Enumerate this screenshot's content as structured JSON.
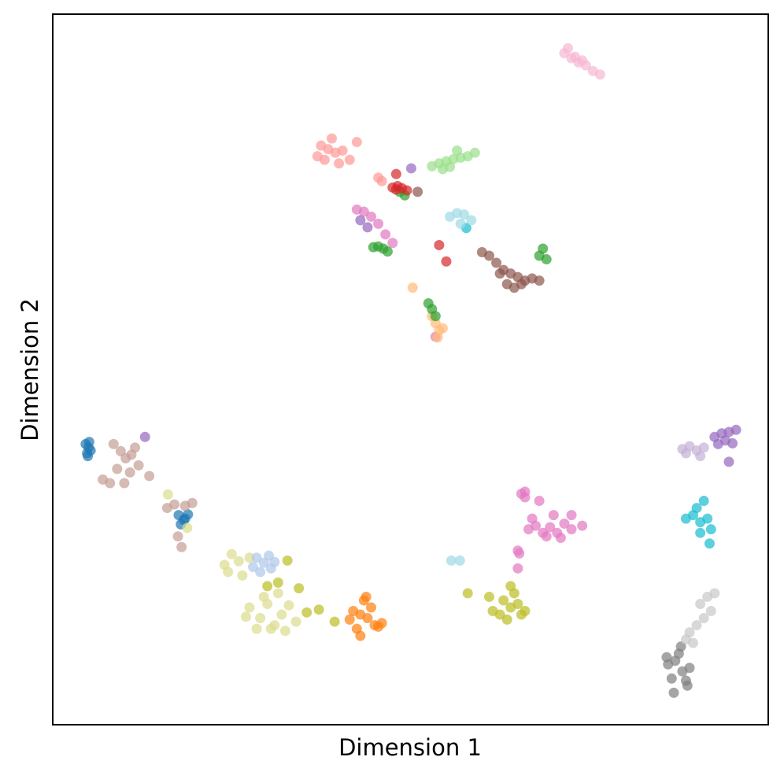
{
  "chart_data": {
    "type": "scatter",
    "xlabel": "Dimension 1",
    "ylabel": "Dimension 2",
    "xlim": [
      0,
      100
    ],
    "ylim": [
      0,
      100
    ],
    "alpha": 0.7,
    "series": [
      {
        "color": "#1f77b4",
        "x": [
          4.6,
          5.0,
          5.3,
          4.8,
          5.1,
          4.9,
          17.6,
          18.3,
          18.9,
          17.9,
          18.5
        ],
        "y": [
          39.5,
          39.0,
          38.6,
          38.2,
          39.8,
          37.8,
          29.5,
          28.8,
          29.6,
          28.2,
          29.0
        ]
      },
      {
        "color": "#c49c94",
        "x": [
          8.5,
          9.5,
          10.2,
          11.0,
          12.0,
          9.0,
          10.8,
          11.5,
          7.0,
          8.0,
          13.5,
          10.0,
          16.0,
          17.0,
          18.5,
          19.5,
          17.5,
          18.0
        ],
        "y": [
          39.5,
          38.5,
          37.5,
          38.0,
          36.5,
          36.0,
          35.5,
          39.0,
          34.5,
          34.0,
          35.0,
          34.0,
          30.5,
          31.0,
          30.8,
          31.2,
          26.5,
          25.0
        ]
      },
      {
        "color": "#dbdb8d",
        "x": [
          27.5,
          29,
          30,
          31,
          32,
          33,
          34,
          28.5,
          30.5,
          32.5,
          27,
          29.5,
          31.5,
          24,
          25,
          26,
          24.5,
          26.5,
          27.5,
          16.1,
          18.8
        ],
        "y": [
          16.5,
          15,
          17,
          14,
          15.5,
          16.8,
          14.5,
          13.5,
          13.5,
          13.2,
          15.2,
          18,
          18.5,
          22.5,
          24,
          23,
          21.5,
          21,
          23.5,
          32.4,
          27.7
        ]
      },
      {
        "color": "#aec7e8",
        "x": [
          28.5,
          29.5,
          30.5,
          29.0,
          30.2,
          28.0,
          31.0
        ],
        "y": [
          23.5,
          22.8,
          22.0,
          21.5,
          23.8,
          22.2,
          22.9
        ]
      },
      {
        "color": "#bcbd22",
        "x": [
          63,
          64,
          65,
          66,
          62.5,
          64.5,
          65.5,
          63.5,
          61.5,
          64,
          58,
          61,
          30,
          32.8,
          34.4,
          37.2,
          39.4,
          31.5,
          35.5
        ],
        "y": [
          17.5,
          16.5,
          17,
          16,
          15.5,
          18.5,
          15.5,
          14.8,
          16,
          19.5,
          18.5,
          18,
          19.5,
          23.1,
          19.2,
          16.2,
          14.5,
          20,
          15.8
        ]
      },
      {
        "color": "#ff7f0e",
        "x": [
          42,
          43,
          44,
          45,
          43.5,
          42.5,
          44.5,
          41.5,
          45.5,
          43,
          46,
          43.8
        ],
        "y": [
          16,
          15.5,
          15,
          14,
          17.5,
          13.5,
          16.5,
          14.8,
          13.8,
          12.5,
          14.3,
          18
        ]
      },
      {
        "color": "#e377c2",
        "x": [
          66.5,
          67.5,
          68.5,
          69.5,
          70.5,
          71.5,
          72.5,
          69,
          71,
          67,
          68,
          70,
          65.5,
          66,
          65,
          74,
          72.5,
          66,
          42.5,
          43.5,
          44.5,
          45.5,
          46.5,
          47.5,
          53.5,
          65.2,
          65
        ],
        "y": [
          27.5,
          28,
          27,
          27.8,
          27,
          28.3,
          27.5,
          26.5,
          26.3,
          29,
          31.5,
          29.5,
          32.5,
          32.8,
          24.5,
          28,
          29.5,
          32,
          72.5,
          72.2,
          71.5,
          70.5,
          69,
          67.8,
          54.6,
          24.1,
          22
        ]
      },
      {
        "color": "#f7b6d2",
        "x": [
          71.5,
          72.5,
          73.5,
          74.5,
          75.5,
          73,
          74,
          76.5,
          72
        ],
        "y": [
          94.5,
          93.8,
          93.2,
          92.8,
          92,
          94,
          93.5,
          91.5,
          95.2
        ]
      },
      {
        "color": "#ff9896",
        "x": [
          37.5,
          38.5,
          39.5,
          40.5,
          38,
          39,
          40,
          37,
          41.5,
          42.5,
          45.5,
          46
        ],
        "y": [
          81.5,
          81,
          80.5,
          80.8,
          79.5,
          82.5,
          79,
          80,
          79.5,
          82,
          77,
          76.5
        ]
      },
      {
        "color": "#98df8a",
        "x": [
          53,
          54,
          55,
          56,
          57,
          58,
          59,
          56.5,
          55.5,
          54.5
        ],
        "y": [
          78.6,
          79,
          79.3,
          79.6,
          79.8,
          80,
          80.5,
          80.8,
          78.5,
          78.2
        ]
      },
      {
        "color": "#8c564b",
        "x": [
          60,
          61,
          62,
          63,
          64,
          65,
          66,
          67,
          68,
          63.5,
          64.5,
          65.5,
          62.5,
          51
        ],
        "y": [
          66.5,
          66,
          65,
          64,
          63.5,
          63,
          62.5,
          62.8,
          62.5,
          62,
          61.5,
          62,
          63.5,
          75
        ]
      },
      {
        "color": "#ffbb78",
        "x": [
          53,
          53.5,
          54,
          54.5,
          53.8,
          50.3
        ],
        "y": [
          57.5,
          56.5,
          55.5,
          55.8,
          54.5,
          61.5
        ]
      },
      {
        "color": "#2ca02c",
        "x": [
          44.8,
          45.5,
          46.2,
          46.8,
          48.5,
          52.5,
          53,
          53.5,
          68.5,
          68,
          69,
          49.2
        ],
        "y": [
          67.2,
          67.3,
          67,
          66.6,
          75,
          59.3,
          58.5,
          57.5,
          67,
          66,
          65.5,
          74.5
        ]
      },
      {
        "color": "#d62728",
        "x": [
          47.5,
          48.2,
          48.8,
          49.5,
          48,
          54,
          55,
          48
        ],
        "y": [
          75.6,
          75.8,
          75.5,
          75.2,
          75.3,
          67.5,
          65.2,
          77.5
        ]
      },
      {
        "color": "#9467bd",
        "x": [
          92.5,
          93.5,
          94.5,
          95.5,
          93,
          94,
          95,
          94.5,
          43,
          44,
          50.1,
          12.9
        ],
        "y": [
          40.5,
          41,
          41.2,
          41.5,
          39.5,
          40,
          39.6,
          37,
          71,
          70,
          78.3,
          40.5
        ]
      },
      {
        "color": "#c5b0d5",
        "x": [
          88,
          89,
          90,
          91,
          88.5,
          90.5
        ],
        "y": [
          38.8,
          39.2,
          38.6,
          39,
          38.2,
          37.8
        ]
      },
      {
        "color": "#17becf",
        "x": [
          88.5,
          89.5,
          90.5,
          91.5,
          90,
          91,
          92,
          90.5,
          91.8,
          57.8
        ],
        "y": [
          29,
          29.5,
          28.5,
          29,
          30.5,
          31.5,
          27.5,
          27,
          25.5,
          69.9
        ]
      },
      {
        "color": "#9edae5",
        "x": [
          55.5,
          56.5,
          57.5,
          58.5,
          57,
          55.7,
          56.9
        ],
        "y": [
          71.5,
          72,
          71.8,
          71,
          70.5,
          23.1,
          23.1
        ]
      },
      {
        "color": "#7f7f7f",
        "x": [
          86,
          87,
          88,
          89,
          86.5,
          87.5,
          88.5,
          85.8,
          87.8,
          86.8,
          88.7
        ],
        "y": [
          8.5,
          9,
          7.5,
          8,
          6.5,
          10,
          6.2,
          9.5,
          11,
          4.5,
          5.5
        ]
      },
      {
        "color": "#c7c7c7",
        "x": [
          89,
          90,
          91,
          92,
          90.5,
          91.5,
          88.5,
          89.5,
          92.5
        ],
        "y": [
          13,
          14,
          15,
          16,
          17,
          18,
          12,
          11.5,
          18.5
        ]
      }
    ]
  }
}
